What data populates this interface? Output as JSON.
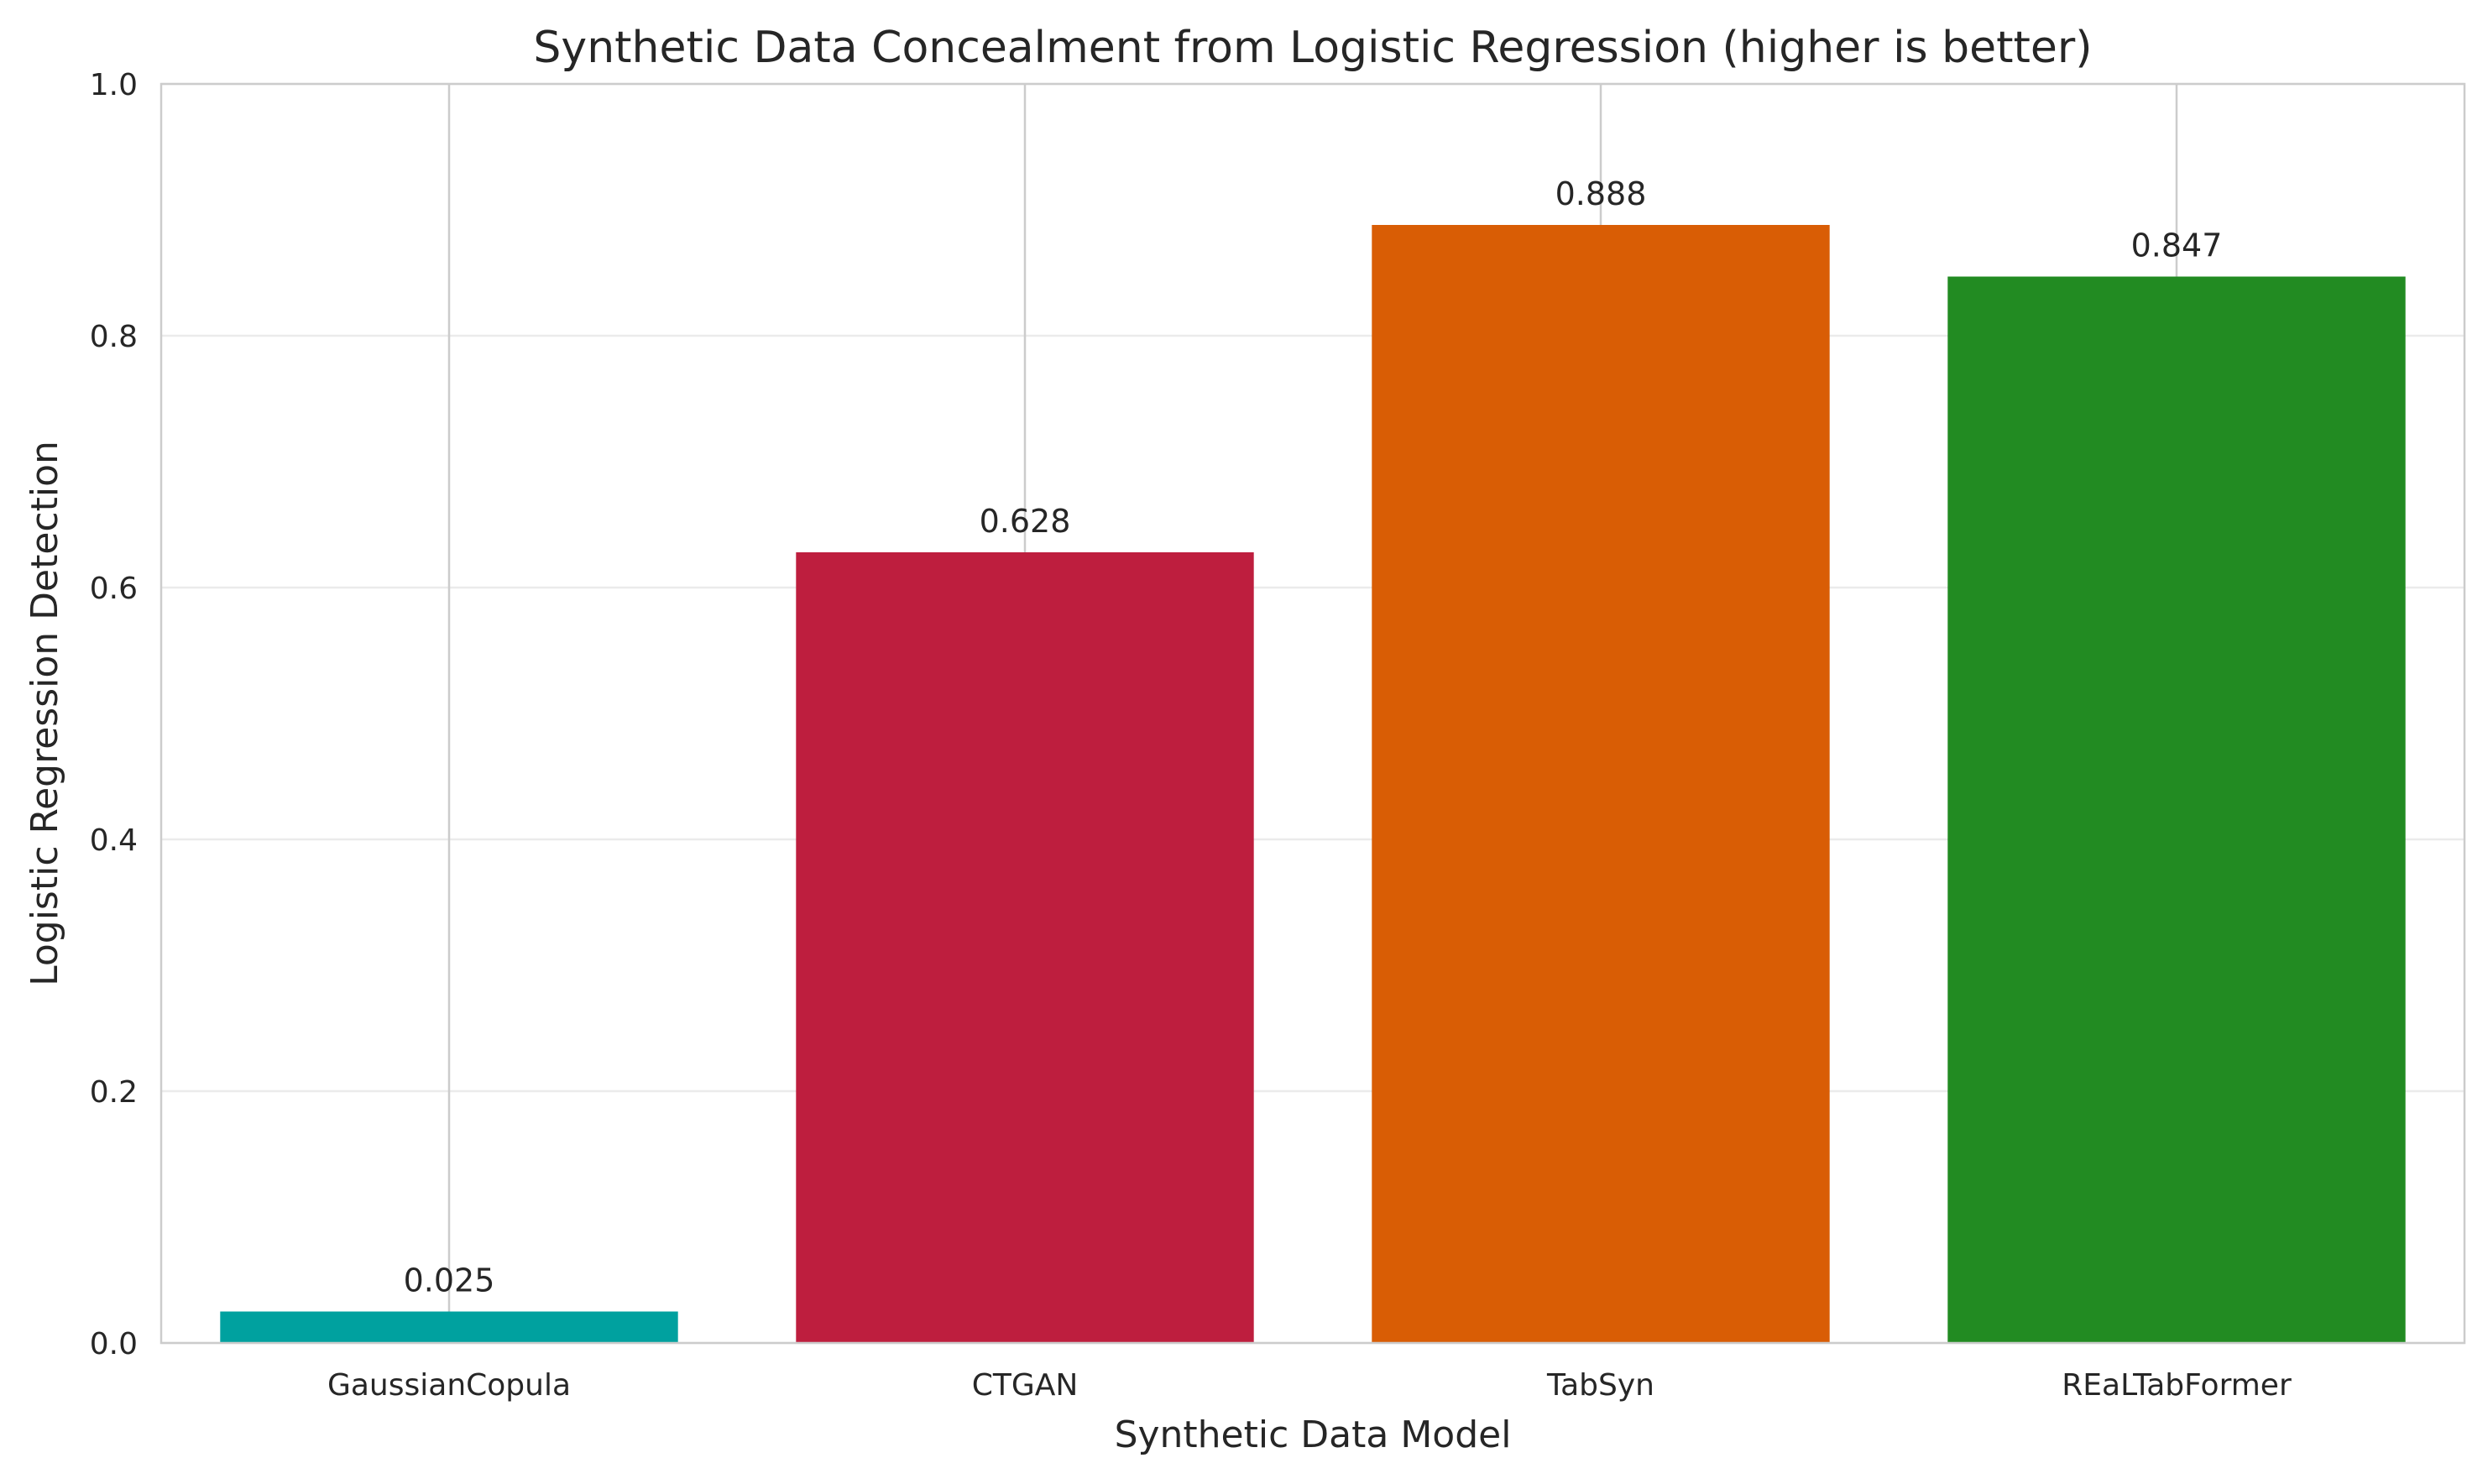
{
  "chart_data": {
    "type": "bar",
    "title": "Synthetic Data Concealment from Logistic Regression (higher is better)",
    "xlabel": "Synthetic Data Model",
    "ylabel": "Logistic Regression Detection",
    "categories": [
      "GaussianCopula",
      "CTGAN",
      "TabSyn",
      "REaLTabFormer"
    ],
    "values": [
      0.025,
      0.628,
      0.888,
      0.847
    ],
    "value_labels": [
      "0.025",
      "0.628",
      "0.888",
      "0.847"
    ],
    "colors": [
      "#00a19f",
      "#be1e3e",
      "#d95d05",
      "#228b22"
    ],
    "ylim": [
      0,
      1.0
    ],
    "yticks": [
      0.0,
      0.2,
      0.4,
      0.6,
      0.8,
      1.0
    ],
    "ytick_labels": [
      "0.0",
      "0.2",
      "0.4",
      "0.6",
      "0.8",
      "1.0"
    ],
    "grid": true,
    "legend": false
  }
}
